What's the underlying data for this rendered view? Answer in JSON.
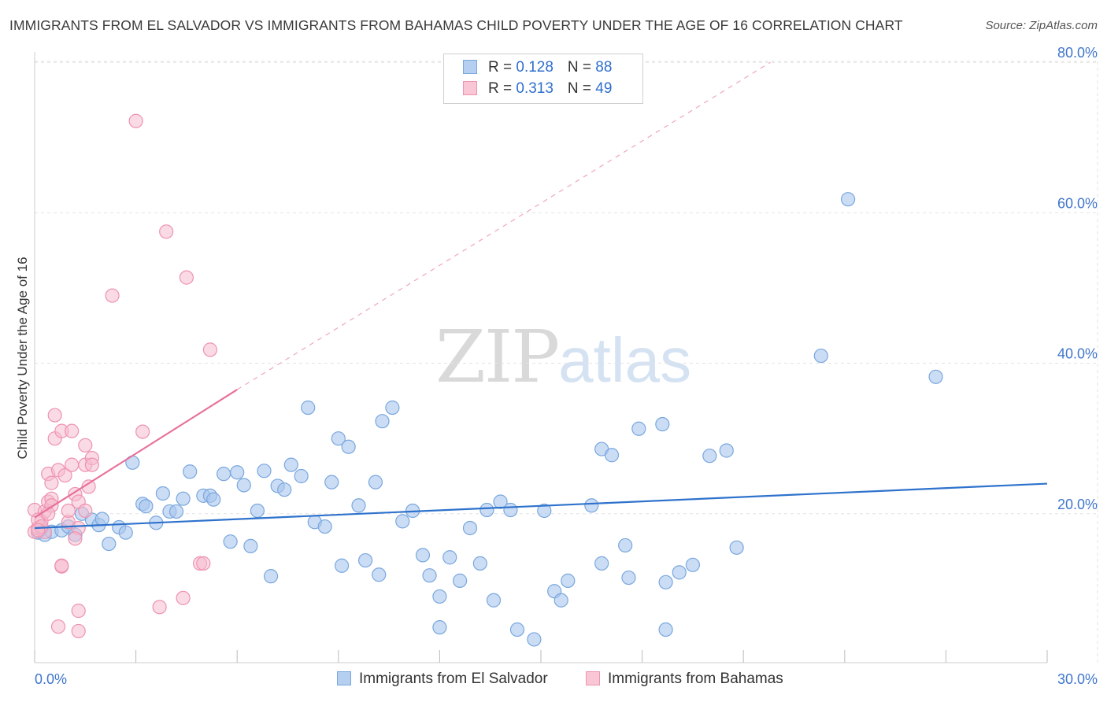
{
  "header": {
    "title": "IMMIGRANTS FROM EL SALVADOR VS IMMIGRANTS FROM BAHAMAS CHILD POVERTY UNDER THE AGE OF 16 CORRELATION CHART",
    "source": "Source: ZipAtlas.com"
  },
  "watermark": {
    "zip": "ZIP",
    "atlas": "atlas"
  },
  "legend": {
    "rows": [
      {
        "r_label": "R = ",
        "r_value": "0.128",
        "n_label": "N = ",
        "n_value": "88"
      },
      {
        "r_label": "R = ",
        "r_value": "0.313",
        "n_label": "N = ",
        "n_value": "49"
      }
    ]
  },
  "bottom_legend": {
    "items": [
      "Immigrants from El Salvador",
      "Immigrants from Bahamas"
    ]
  },
  "colors": {
    "blue_fill": "#a9c7ee",
    "blue_stroke": "#7aa7dd",
    "blue_line": "#2e72cc",
    "pink_fill": "#f6bccd",
    "pink_stroke": "#ee93b0",
    "pink_line": "#e8709a",
    "axis_text": "#3f76cc",
    "grid": "#e3e3e3"
  },
  "chart_data": {
    "type": "scatter",
    "title": "IMMIGRANTS FROM EL SALVADOR VS IMMIGRANTS FROM BAHAMAS CHILD POVERTY UNDER THE AGE OF 16 CORRELATION CHART",
    "xlabel": "",
    "ylabel": "Child Poverty Under the Age of 16",
    "xlim": [
      0,
      30
    ],
    "ylim": [
      0,
      85
    ],
    "x_ticks": [
      0,
      3,
      6,
      9,
      12,
      15,
      18,
      21,
      24,
      27,
      30
    ],
    "x_tick_labels": {
      "0": "0.0%",
      "30": "30.0%"
    },
    "y_ticks": [
      20,
      40,
      60,
      80
    ],
    "y_tick_labels": [
      "20.0%",
      "40.0%",
      "60.0%",
      "80.0%"
    ],
    "grid": true,
    "legend_position": "top-center",
    "series": [
      {
        "name": "Immigrants from El Salvador",
        "color": "#a9c7ee",
        "trend": {
          "x": [
            0,
            30
          ],
          "y": [
            18.1,
            24.0
          ]
        },
        "points": [
          [
            0.1,
            17.5
          ],
          [
            0.2,
            18.0
          ],
          [
            0.3,
            17.2
          ],
          [
            0.5,
            17.6
          ],
          [
            0.8,
            17.8
          ],
          [
            1.0,
            18.3
          ],
          [
            1.2,
            17.2
          ],
          [
            1.4,
            20.0
          ],
          [
            1.7,
            19.2
          ],
          [
            1.9,
            18.5
          ],
          [
            2.0,
            19.3
          ],
          [
            2.2,
            16.0
          ],
          [
            2.5,
            18.2
          ],
          [
            2.7,
            17.5
          ],
          [
            2.9,
            26.8
          ],
          [
            3.2,
            21.3
          ],
          [
            3.3,
            21.0
          ],
          [
            3.6,
            18.8
          ],
          [
            3.8,
            22.7
          ],
          [
            4.0,
            20.3
          ],
          [
            4.2,
            20.3
          ],
          [
            4.4,
            22.0
          ],
          [
            4.6,
            25.6
          ],
          [
            5.0,
            22.4
          ],
          [
            5.2,
            22.4
          ],
          [
            5.3,
            21.9
          ],
          [
            5.6,
            25.3
          ],
          [
            5.8,
            16.3
          ],
          [
            6.0,
            25.5
          ],
          [
            6.2,
            23.8
          ],
          [
            6.4,
            15.7
          ],
          [
            6.6,
            20.4
          ],
          [
            6.8,
            25.7
          ],
          [
            7.0,
            11.7
          ],
          [
            7.2,
            23.7
          ],
          [
            7.4,
            23.2
          ],
          [
            7.6,
            26.5
          ],
          [
            7.9,
            25.0
          ],
          [
            8.1,
            34.1
          ],
          [
            8.3,
            18.9
          ],
          [
            8.6,
            18.3
          ],
          [
            8.8,
            24.2
          ],
          [
            9.0,
            30.0
          ],
          [
            9.1,
            13.1
          ],
          [
            9.3,
            28.9
          ],
          [
            9.6,
            21.1
          ],
          [
            9.8,
            13.8
          ],
          [
            10.1,
            24.2
          ],
          [
            10.2,
            11.9
          ],
          [
            10.3,
            32.3
          ],
          [
            10.6,
            34.1
          ],
          [
            10.9,
            19.0
          ],
          [
            11.2,
            20.4
          ],
          [
            11.5,
            14.5
          ],
          [
            11.7,
            11.8
          ],
          [
            12.0,
            4.9
          ],
          [
            12.0,
            9.0
          ],
          [
            12.3,
            14.2
          ],
          [
            12.6,
            11.1
          ],
          [
            12.9,
            18.1
          ],
          [
            13.2,
            13.4
          ],
          [
            13.4,
            20.5
          ],
          [
            13.6,
            8.5
          ],
          [
            13.8,
            21.6
          ],
          [
            14.1,
            20.5
          ],
          [
            14.3,
            4.6
          ],
          [
            14.8,
            3.3
          ],
          [
            15.1,
            20.4
          ],
          [
            15.4,
            9.7
          ],
          [
            15.6,
            8.5
          ],
          [
            15.8,
            11.1
          ],
          [
            16.5,
            21.1
          ],
          [
            16.8,
            13.4
          ],
          [
            16.8,
            28.6
          ],
          [
            17.1,
            27.8
          ],
          [
            17.5,
            15.8
          ],
          [
            17.6,
            11.5
          ],
          [
            17.9,
            31.3
          ],
          [
            18.6,
            31.9
          ],
          [
            18.7,
            4.6
          ],
          [
            18.7,
            10.9
          ],
          [
            19.1,
            12.2
          ],
          [
            19.5,
            13.2
          ],
          [
            20.0,
            27.7
          ],
          [
            20.5,
            28.4
          ],
          [
            20.8,
            15.5
          ],
          [
            23.3,
            41.0
          ],
          [
            24.1,
            61.8
          ],
          [
            26.7,
            38.2
          ]
        ]
      },
      {
        "name": "Immigrants from Bahamas",
        "color": "#f6bccd",
        "trend": {
          "x": [
            0,
            6.0
          ],
          "y": [
            19.5,
            36.5
          ],
          "dashed_extension": {
            "x": [
              6.0,
              21.8
            ],
            "y": [
              36.5,
              80.0
            ]
          }
        },
        "points": [
          [
            0.0,
            20.5
          ],
          [
            0.0,
            17.6
          ],
          [
            0.1,
            18.1
          ],
          [
            0.2,
            19.0
          ],
          [
            0.3,
            20.3
          ],
          [
            0.3,
            17.6
          ],
          [
            0.4,
            25.3
          ],
          [
            0.4,
            21.6
          ],
          [
            0.5,
            22.0
          ],
          [
            0.5,
            24.1
          ],
          [
            0.6,
            33.1
          ],
          [
            0.6,
            30.0
          ],
          [
            0.7,
            25.8
          ],
          [
            0.7,
            5.0
          ],
          [
            0.8,
            13.0
          ],
          [
            0.8,
            31.0
          ],
          [
            0.8,
            13.1
          ],
          [
            0.9,
            25.1
          ],
          [
            1.0,
            18.9
          ],
          [
            1.0,
            20.4
          ],
          [
            1.1,
            26.5
          ],
          [
            1.1,
            31.0
          ],
          [
            1.2,
            22.6
          ],
          [
            1.3,
            18.1
          ],
          [
            1.2,
            16.7
          ],
          [
            1.3,
            21.6
          ],
          [
            1.3,
            7.1
          ],
          [
            1.3,
            4.4
          ],
          [
            1.5,
            26.5
          ],
          [
            1.5,
            20.4
          ],
          [
            1.5,
            29.1
          ],
          [
            1.6,
            23.6
          ],
          [
            1.7,
            27.4
          ],
          [
            1.7,
            26.5
          ],
          [
            2.3,
            49.0
          ],
          [
            3.0,
            72.2
          ],
          [
            3.2,
            30.9
          ],
          [
            3.7,
            7.6
          ],
          [
            3.9,
            57.5
          ],
          [
            4.4,
            8.8
          ],
          [
            4.5,
            51.4
          ],
          [
            4.9,
            13.4
          ],
          [
            5.0,
            13.4
          ],
          [
            5.2,
            41.8
          ],
          [
            0.1,
            19.2
          ],
          [
            0.2,
            18.3
          ],
          [
            0.1,
            17.8
          ],
          [
            0.5,
            21.1
          ],
          [
            0.4,
            20.0
          ]
        ]
      }
    ]
  }
}
